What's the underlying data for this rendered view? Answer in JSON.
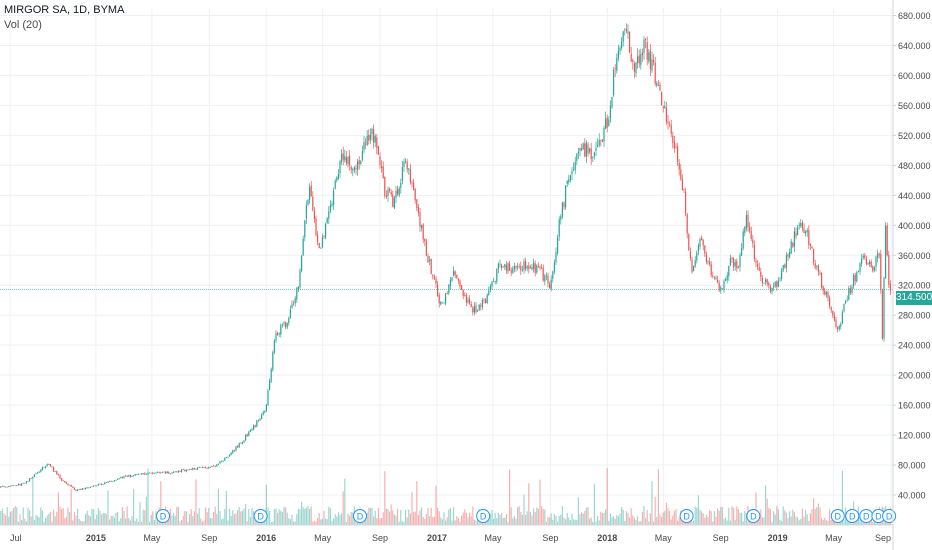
{
  "chart_data": {
    "type": "candlestick",
    "symbol": "MIRGOR SA, 1D, BYMA",
    "indicator": "Vol (20)",
    "last_price": "314.500",
    "y_axis": {
      "range": [
        0,
        690
      ],
      "ticks": [
        40,
        80,
        120,
        160,
        200,
        240,
        280,
        320,
        360,
        400,
        440,
        480,
        520,
        560,
        600,
        640,
        680
      ],
      "tick_labels": [
        "40.000",
        "80.000",
        "120.000",
        "160.000",
        "200.000",
        "240.000",
        "280.000",
        "320.000",
        "360.000",
        "400.000",
        "440.000",
        "480.000",
        "520.000",
        "560.000",
        "600.000",
        "640.000",
        "680.000"
      ]
    },
    "x_axis": {
      "labels": [
        "Jul",
        "2015",
        "May",
        "Sep",
        "2016",
        "May",
        "Sep",
        "2017",
        "May",
        "Sep",
        "2018",
        "May",
        "Sep",
        "2019",
        "May",
        "Sep"
      ],
      "dates": [
        "2014-07-01",
        "2015-01-01",
        "2015-05-01",
        "2015-09-01",
        "2016-01-01",
        "2016-05-01",
        "2016-09-01",
        "2017-01-01",
        "2017-05-01",
        "2017-09-01",
        "2018-01-01",
        "2018-05-01",
        "2018-09-01",
        "2019-01-01",
        "2019-05-01",
        "2019-09-01"
      ]
    },
    "price_path": [
      [
        "2014-06-01",
        50
      ],
      [
        "2014-08-01",
        55
      ],
      [
        "2014-09-20",
        82
      ],
      [
        "2014-10-20",
        60
      ],
      [
        "2014-11-20",
        46
      ],
      [
        "2015-01-15",
        55
      ],
      [
        "2015-03-01",
        64
      ],
      [
        "2015-05-01",
        70
      ],
      [
        "2015-06-15",
        70
      ],
      [
        "2015-08-01",
        76
      ],
      [
        "2015-09-15",
        78
      ],
      [
        "2015-11-01",
        105
      ],
      [
        "2015-12-10",
        135
      ],
      [
        "2015-12-31",
        152
      ],
      [
        "2016-01-20",
        255
      ],
      [
        "2016-02-15",
        270
      ],
      [
        "2016-03-10",
        320
      ],
      [
        "2016-04-01",
        450
      ],
      [
        "2016-04-25",
        362
      ],
      [
        "2016-05-20",
        430
      ],
      [
        "2016-06-15",
        500
      ],
      [
        "2016-07-10",
        465
      ],
      [
        "2016-08-01",
        510
      ],
      [
        "2016-08-20",
        520
      ],
      [
        "2016-09-10",
        450
      ],
      [
        "2016-10-01",
        430
      ],
      [
        "2016-10-25",
        492
      ],
      [
        "2016-11-15",
        430
      ],
      [
        "2016-12-15",
        350
      ],
      [
        "2017-01-10",
        292
      ],
      [
        "2017-02-05",
        340
      ],
      [
        "2017-02-25",
        305
      ],
      [
        "2017-03-20",
        285
      ],
      [
        "2017-04-15",
        302
      ],
      [
        "2017-05-15",
        345
      ],
      [
        "2017-06-15",
        340
      ],
      [
        "2017-07-15",
        350
      ],
      [
        "2017-08-15",
        335
      ],
      [
        "2017-09-01",
        320
      ],
      [
        "2017-09-20",
        400
      ],
      [
        "2017-10-15",
        480
      ],
      [
        "2017-11-10",
        505
      ],
      [
        "2017-12-05",
        488
      ],
      [
        "2018-01-01",
        540
      ],
      [
        "2018-01-20",
        620
      ],
      [
        "2018-02-10",
        655
      ],
      [
        "2018-03-01",
        610
      ],
      [
        "2018-03-25",
        640
      ],
      [
        "2018-04-15",
        595
      ],
      [
        "2018-05-01",
        560
      ],
      [
        "2018-05-20",
        520
      ],
      [
        "2018-06-15",
        440
      ],
      [
        "2018-07-01",
        330
      ],
      [
        "2018-07-20",
        385
      ],
      [
        "2018-08-10",
        340
      ],
      [
        "2018-09-01",
        312
      ],
      [
        "2018-09-20",
        350
      ],
      [
        "2018-10-10",
        345
      ],
      [
        "2018-10-25",
        415
      ],
      [
        "2018-11-20",
        340
      ],
      [
        "2018-12-15",
        312
      ],
      [
        "2019-01-05",
        330
      ],
      [
        "2019-01-25",
        365
      ],
      [
        "2019-02-15",
        398
      ],
      [
        "2019-03-05",
        390
      ],
      [
        "2019-03-25",
        340
      ],
      [
        "2019-04-15",
        310
      ],
      [
        "2019-05-10",
        255
      ],
      [
        "2019-05-25",
        298
      ],
      [
        "2019-06-15",
        330
      ],
      [
        "2019-07-05",
        355
      ],
      [
        "2019-07-25",
        345
      ],
      [
        "2019-08-08",
        360
      ],
      [
        "2019-08-14",
        245
      ],
      [
        "2019-08-20",
        400
      ],
      [
        "2019-08-28",
        310
      ],
      [
        "2019-09-03",
        314.5
      ]
    ],
    "volume_scale": "relative",
    "dividend_markers": [
      "D",
      "D",
      "D",
      "D",
      "D",
      "D",
      "D",
      "D",
      "D",
      "D",
      "D"
    ],
    "dividend_dates": [
      "2015-05-25",
      "2015-12-20",
      "2016-07-20",
      "2017-04-10",
      "2018-06-20",
      "2018-11-10",
      "2019-05-10",
      "2019-06-10",
      "2019-07-10",
      "2019-08-05",
      "2019-08-28"
    ],
    "colors": {
      "up": "#26a69a",
      "down": "#ef5350",
      "grid": "#eef0f3",
      "axis_text": "#4a4a4a",
      "last_price_line": "#26a69a",
      "marker": "#2196f3"
    }
  }
}
